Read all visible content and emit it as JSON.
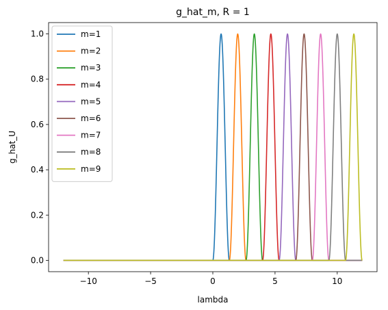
{
  "chart_data": {
    "type": "line",
    "title": "g_hat_m, R = 1",
    "xlabel": "lambda",
    "ylabel": "g_hat_U",
    "xlim": [
      -13.2,
      13.2
    ],
    "ylim": [
      -0.05,
      1.05
    ],
    "xticks": [
      -10,
      -5,
      0,
      5,
      10
    ],
    "xtick_labels": [
      "−10",
      "−5",
      "0",
      "5",
      "10"
    ],
    "yticks": [
      0.0,
      0.2,
      0.4,
      0.6,
      0.8,
      1.0
    ],
    "ytick_labels": [
      "0.0",
      "0.2",
      "0.4",
      "0.6",
      "0.8",
      "1.0"
    ],
    "x_domain": [
      -12,
      12
    ],
    "grid": false,
    "legend_position": "upper-left",
    "series": [
      {
        "name": "m=1",
        "color": "#1f77b4",
        "bump_start": 0.0,
        "bump_end": 1.33,
        "peak": 1.0
      },
      {
        "name": "m=2",
        "color": "#ff7f0e",
        "bump_start": 1.33,
        "bump_end": 2.67,
        "peak": 1.0
      },
      {
        "name": "m=3",
        "color": "#2ca02c",
        "bump_start": 2.67,
        "bump_end": 4.0,
        "peak": 1.0
      },
      {
        "name": "m=4",
        "color": "#d62728",
        "bump_start": 4.0,
        "bump_end": 5.33,
        "peak": 1.0
      },
      {
        "name": "m=5",
        "color": "#9467bd",
        "bump_start": 5.33,
        "bump_end": 6.67,
        "peak": 1.0
      },
      {
        "name": "m=6",
        "color": "#8c564b",
        "bump_start": 6.67,
        "bump_end": 8.0,
        "peak": 1.0
      },
      {
        "name": "m=7",
        "color": "#e377c2",
        "bump_start": 8.0,
        "bump_end": 9.33,
        "peak": 1.0
      },
      {
        "name": "m=8",
        "color": "#7f7f7f",
        "bump_start": 9.33,
        "bump_end": 10.67,
        "peak": 1.0
      },
      {
        "name": "m=9",
        "color": "#bcbd22",
        "bump_start": 10.67,
        "bump_end": 12.0,
        "peak": 1.0
      }
    ]
  }
}
